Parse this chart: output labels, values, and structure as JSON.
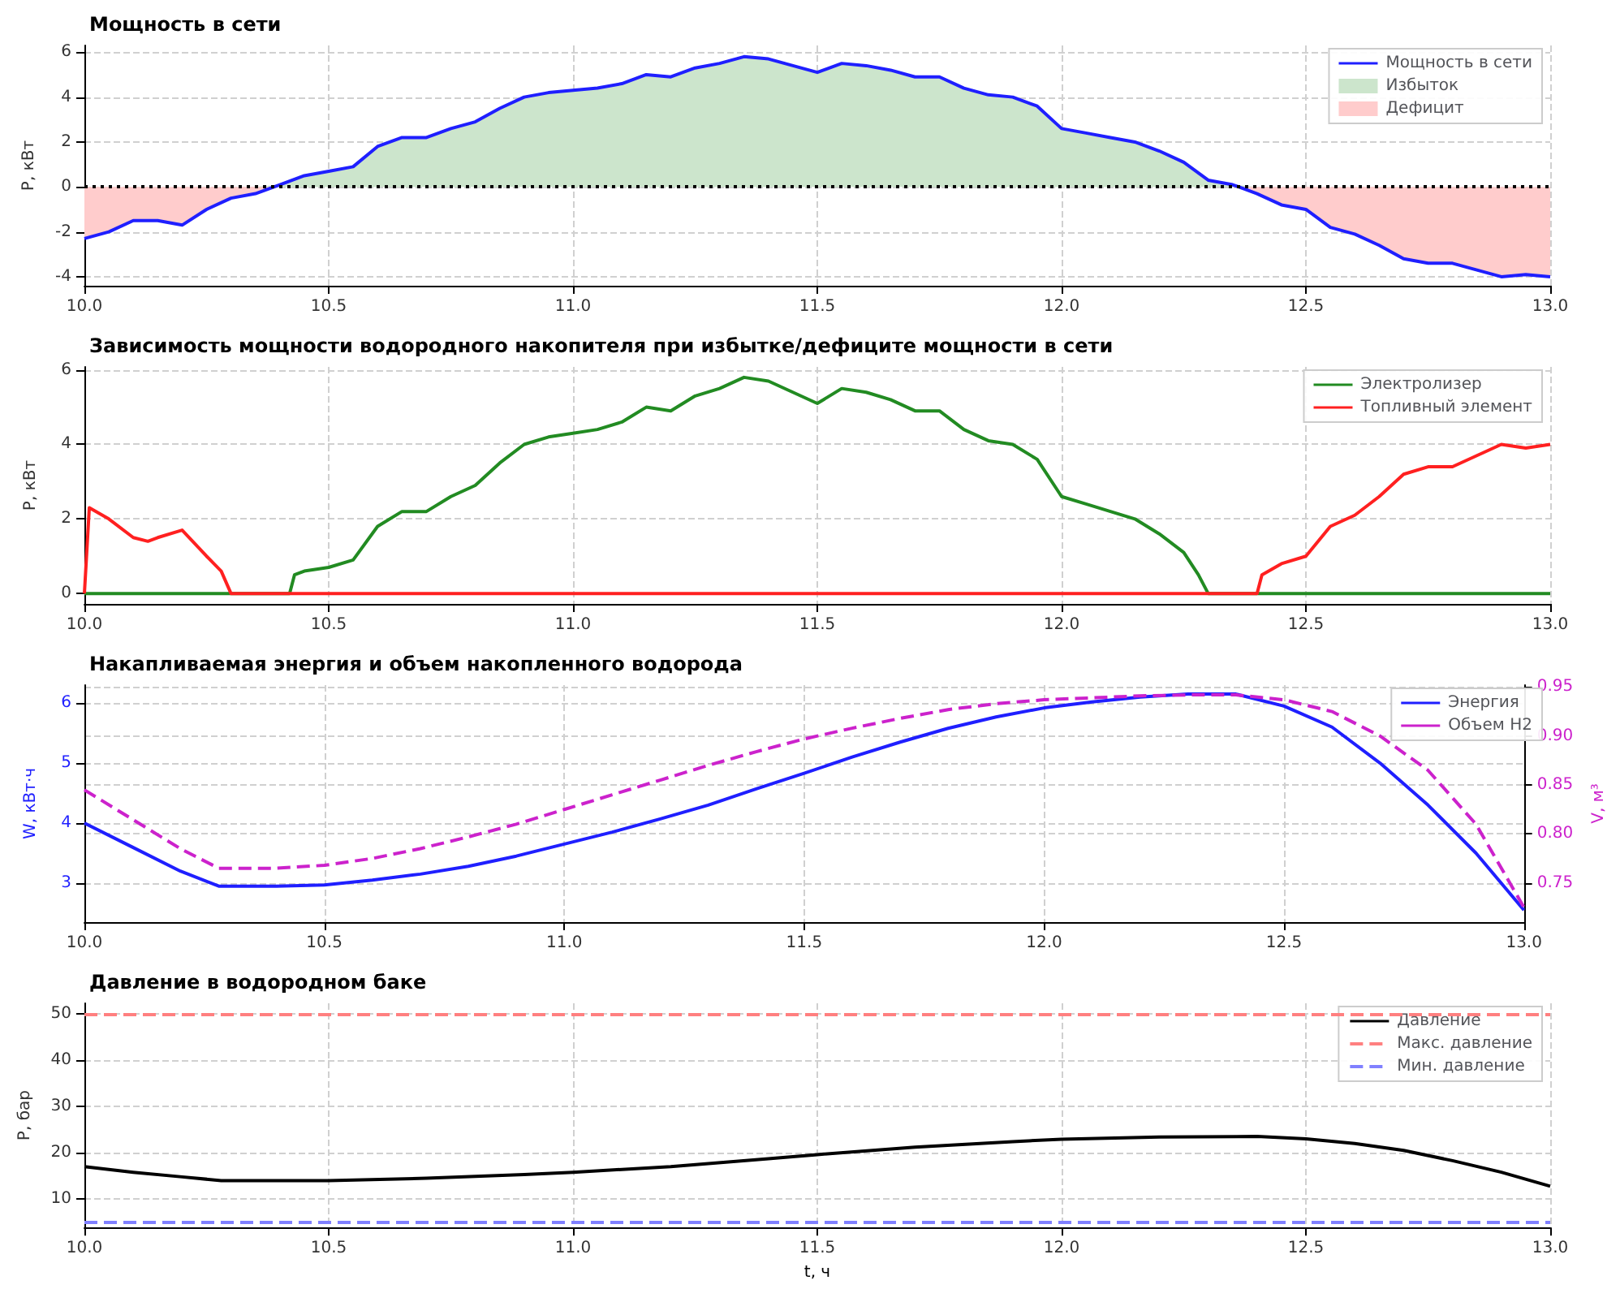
{
  "chart_data": [
    {
      "type": "line",
      "title": "Мощность в сети",
      "ylabel": "P, кВт",
      "xlim": [
        10,
        13
      ],
      "xticks": [
        {
          "value": 10,
          "label": "10.0"
        },
        {
          "value": 10.5,
          "label": "10.5"
        },
        {
          "value": 11,
          "label": "11.0"
        },
        {
          "value": 11.5,
          "label": "11.5"
        },
        {
          "value": 12,
          "label": "12.0"
        },
        {
          "value": 12.5,
          "label": "12.5"
        },
        {
          "value": 13,
          "label": "13.0"
        }
      ],
      "ylim": [
        -4.4,
        6.3
      ],
      "yticks": [
        -4,
        -2,
        0,
        2,
        4,
        6
      ],
      "grid": true,
      "legend": "top right",
      "marker": "none",
      "x": [
        10,
        10.05,
        10.1,
        10.15,
        10.2,
        10.25,
        10.3,
        10.35,
        10.4,
        10.45,
        10.5,
        10.55,
        10.6,
        10.65,
        10.7,
        10.75,
        10.8,
        10.85,
        10.9,
        10.95,
        11,
        11.05,
        11.1,
        11.15,
        11.2,
        11.25,
        11.3,
        11.35,
        11.4,
        11.45,
        11.5,
        11.55,
        11.6,
        11.65,
        11.7,
        11.75,
        11.8,
        11.85,
        11.9,
        11.95,
        12,
        12.05,
        12.1,
        12.15,
        12.2,
        12.25,
        12.3,
        12.35,
        12.4,
        12.45,
        12.5,
        12.55,
        12.6,
        12.65,
        12.7,
        12.75,
        12.8,
        12.85,
        12.9,
        12.95,
        13
      ],
      "series": [
        {
          "name": "Мощность в сети",
          "color": "#1f1fff",
          "values": [
            -2.3,
            -2.0,
            -1.5,
            -1.5,
            -1.7,
            -1.0,
            -0.5,
            -0.3,
            0.1,
            0.5,
            0.7,
            0.9,
            1.8,
            2.2,
            2.2,
            2.6,
            2.9,
            3.5,
            4.0,
            4.2,
            4.3,
            4.4,
            4.6,
            5.0,
            4.9,
            5.3,
            5.5,
            5.8,
            5.7,
            5.4,
            5.1,
            5.5,
            5.4,
            5.2,
            4.9,
            4.9,
            4.4,
            4.1,
            4.0,
            3.6,
            2.6,
            2.4,
            2.2,
            2.0,
            1.6,
            1.1,
            0.3,
            0.1,
            -0.3,
            -0.8,
            -1.0,
            -1.8,
            -2.1,
            -2.6,
            -3.2,
            -3.4,
            -3.4,
            -3.7,
            -4.0,
            -3.9,
            -4.0
          ]
        },
        {
          "name": "Избыток",
          "type": "area",
          "color": "#cce5cc",
          "values": [
            null,
            null,
            null,
            null,
            null,
            null,
            null,
            0,
            0.1,
            0.5,
            0.7,
            0.9,
            1.8,
            2.2,
            2.2,
            2.6,
            2.9,
            3.5,
            4.0,
            4.2,
            4.3,
            4.4,
            4.6,
            5.0,
            4.9,
            5.3,
            5.5,
            5.8,
            5.7,
            5.4,
            5.1,
            5.5,
            5.4,
            5.2,
            4.9,
            4.9,
            4.4,
            4.1,
            4.0,
            3.6,
            2.6,
            2.4,
            2.2,
            2.0,
            1.6,
            1.1,
            0.3,
            0.1,
            0,
            null,
            null,
            null,
            null,
            null,
            null,
            null,
            null,
            null,
            null,
            null,
            null
          ]
        },
        {
          "name": "Дефицит",
          "type": "area",
          "color": "#ffcccc",
          "values": [
            -2.3,
            -2.0,
            -1.5,
            -1.5,
            -1.7,
            -1.0,
            -0.5,
            -0.3,
            0,
            null,
            null,
            null,
            null,
            null,
            null,
            null,
            null,
            null,
            null,
            null,
            null,
            null,
            null,
            null,
            null,
            null,
            null,
            null,
            null,
            null,
            null,
            null,
            null,
            null,
            null,
            null,
            null,
            null,
            null,
            null,
            null,
            null,
            null,
            null,
            null,
            null,
            null,
            0,
            -0.3,
            -0.8,
            -1.0,
            -1.8,
            -2.1,
            -2.6,
            -3.2,
            -3.4,
            -3.4,
            -3.7,
            -4.0,
            -3.9,
            -4.0
          ]
        }
      ],
      "ref_lines": [
        {
          "axis": "y",
          "value": 0,
          "color": "#000000",
          "line_style": "dotted"
        }
      ]
    },
    {
      "type": "line",
      "title": "Зависимость мощности водородного накопителя при избытке/дефиците мощности в сети",
      "ylabel": "P, кВт",
      "xlim": [
        10,
        13
      ],
      "xticks": [
        {
          "value": 10,
          "label": "10.0"
        },
        {
          "value": 10.5,
          "label": "10.5"
        },
        {
          "value": 11,
          "label": "11.0"
        },
        {
          "value": 11.5,
          "label": "11.5"
        },
        {
          "value": 12,
          "label": "12.0"
        },
        {
          "value": 12.5,
          "label": "12.5"
        },
        {
          "value": 13,
          "label": "13.0"
        }
      ],
      "ylim": [
        -0.28,
        6.08
      ],
      "yticks": [
        0,
        2,
        4,
        6
      ],
      "grid": true,
      "legend": "top right",
      "marker": "none",
      "series": [
        {
          "name": "Электролизер",
          "color": "#228b22",
          "x": [
            10,
            10.42,
            10.43,
            10.45,
            10.5,
            10.55,
            10.6,
            10.65,
            10.7,
            10.75,
            10.8,
            10.85,
            10.9,
            10.95,
            11,
            11.05,
            11.1,
            11.15,
            11.2,
            11.25,
            11.3,
            11.35,
            11.4,
            11.45,
            11.5,
            11.55,
            11.6,
            11.65,
            11.7,
            11.75,
            11.8,
            11.85,
            11.9,
            11.95,
            12,
            12.05,
            12.1,
            12.15,
            12.2,
            12.25,
            12.28,
            12.3,
            13
          ],
          "values": [
            0,
            0,
            0.5,
            0.6,
            0.7,
            0.9,
            1.8,
            2.2,
            2.2,
            2.6,
            2.9,
            3.5,
            4.0,
            4.2,
            4.3,
            4.4,
            4.6,
            5.0,
            4.9,
            5.3,
            5.5,
            5.8,
            5.7,
            5.4,
            5.1,
            5.5,
            5.4,
            5.2,
            4.9,
            4.9,
            4.4,
            4.1,
            4.0,
            3.6,
            2.6,
            2.4,
            2.2,
            2.0,
            1.6,
            1.1,
            0.5,
            0,
            0
          ]
        },
        {
          "name": "Топливный элемент",
          "color": "#ff2020",
          "x": [
            10,
            10.01,
            10.05,
            10.1,
            10.13,
            10.15,
            10.2,
            10.25,
            10.28,
            10.3,
            12.4,
            12.41,
            12.45,
            12.5,
            12.55,
            12.6,
            12.65,
            12.7,
            12.75,
            12.8,
            12.85,
            12.9,
            12.95,
            13
          ],
          "values": [
            0,
            2.3,
            2.0,
            1.5,
            1.4,
            1.5,
            1.7,
            1.0,
            0.6,
            0,
            0,
            0.5,
            0.8,
            1.0,
            1.8,
            2.1,
            2.6,
            3.2,
            3.4,
            3.4,
            3.7,
            4.0,
            3.9,
            4.0
          ]
        }
      ]
    },
    {
      "type": "line",
      "title": "Накапливаемая энергия и объем накопленного водорода",
      "ylabel": "W, кВт·ч",
      "y2label": "V, м³",
      "xlim": [
        10,
        13
      ],
      "xticks": [
        {
          "value": 10,
          "label": "10.0"
        },
        {
          "value": 10.5,
          "label": "10.5"
        },
        {
          "value": 11,
          "label": "11.0"
        },
        {
          "value": 11.5,
          "label": "11.5"
        },
        {
          "value": 12,
          "label": "12.0"
        },
        {
          "value": 12.5,
          "label": "12.5"
        },
        {
          "value": 13,
          "label": "13.0"
        }
      ],
      "ylim": [
        2.35,
        6.3
      ],
      "yticks": [
        3,
        4,
        5,
        6
      ],
      "y2lim": [
        0.71,
        0.952
      ],
      "y2ticks": [
        {
          "value": 0.75,
          "label": "0.75"
        },
        {
          "value": 0.8,
          "label": "0.80"
        },
        {
          "value": 0.85,
          "label": "0.85"
        },
        {
          "value": 0.9,
          "label": "0.90"
        },
        {
          "value": 0.95,
          "label": "0.95"
        }
      ],
      "grid": true,
      "legend": "top right",
      "marker": "none",
      "x": [
        10,
        10.1,
        10.2,
        10.28,
        10.4,
        10.5,
        10.6,
        10.7,
        10.8,
        10.9,
        11,
        11.1,
        11.2,
        11.3,
        11.4,
        11.5,
        11.6,
        11.7,
        11.8,
        11.9,
        12,
        12.1,
        12.2,
        12.3,
        12.4,
        12.5,
        12.6,
        12.7,
        12.8,
        12.9,
        13
      ],
      "series": [
        {
          "name": "Энергия",
          "color": "#1f1fff",
          "values": [
            4.0,
            3.6,
            3.2,
            2.95,
            2.95,
            2.97,
            3.05,
            3.15,
            3.28,
            3.45,
            3.65,
            3.85,
            4.07,
            4.3,
            4.57,
            4.83,
            5.1,
            5.35,
            5.58,
            5.77,
            5.92,
            6.02,
            6.1,
            6.15,
            6.15,
            5.95,
            5.6,
            5.0,
            4.3,
            3.5,
            2.55
          ]
        },
        {
          "name": "Объем H2",
          "color": "#cc22cc",
          "axis": "y2",
          "line_style": "dashed",
          "values": [
            0.845,
            0.815,
            0.785,
            0.765,
            0.765,
            0.768,
            0.775,
            0.785,
            0.797,
            0.81,
            0.825,
            0.84,
            0.855,
            0.87,
            0.884,
            0.897,
            0.908,
            0.918,
            0.927,
            0.933,
            0.937,
            0.939,
            0.941,
            0.942,
            0.942,
            0.937,
            0.925,
            0.9,
            0.865,
            0.81,
            0.725
          ]
        }
      ]
    },
    {
      "type": "line",
      "title": "Давление в водородном баке",
      "ylabel": "P, бар",
      "xlabel": "t, ч",
      "xlim": [
        10,
        13
      ],
      "xticks": [
        {
          "value": 10,
          "label": "10.0"
        },
        {
          "value": 10.5,
          "label": "10.5"
        },
        {
          "value": 11,
          "label": "11.0"
        },
        {
          "value": 11.5,
          "label": "11.5"
        },
        {
          "value": 12,
          "label": "12.0"
        },
        {
          "value": 12.5,
          "label": "12.5"
        },
        {
          "value": 13,
          "label": "13.0"
        }
      ],
      "ylim": [
        3.9,
        52.2
      ],
      "yticks": [
        10,
        20,
        30,
        40,
        50
      ],
      "grid": true,
      "legend": "top right",
      "marker": "none",
      "series": [
        {
          "name": "Давление",
          "color": "#000000",
          "x": [
            10,
            10.1,
            10.2,
            10.28,
            10.5,
            10.7,
            10.9,
            11,
            11.2,
            11.4,
            11.5,
            11.7,
            11.9,
            12,
            12.2,
            12.4,
            12.5,
            12.6,
            12.7,
            12.8,
            12.9,
            13
          ],
          "values": [
            17,
            15.8,
            14.8,
            14,
            14,
            14.5,
            15.3,
            15.8,
            17,
            18.7,
            19.6,
            21.2,
            22.4,
            22.9,
            23.4,
            23.5,
            23,
            22,
            20.5,
            18.3,
            15.8,
            12.8
          ]
        }
      ],
      "ref_lines": [
        {
          "axis": "y",
          "value": 50,
          "label": "Макс. давление",
          "color": "#ff8080",
          "line_style": "dashed"
        },
        {
          "axis": "y",
          "value": 5,
          "label": "Мин. давление",
          "color": "#8080ff",
          "line_style": "dashed"
        }
      ]
    }
  ]
}
